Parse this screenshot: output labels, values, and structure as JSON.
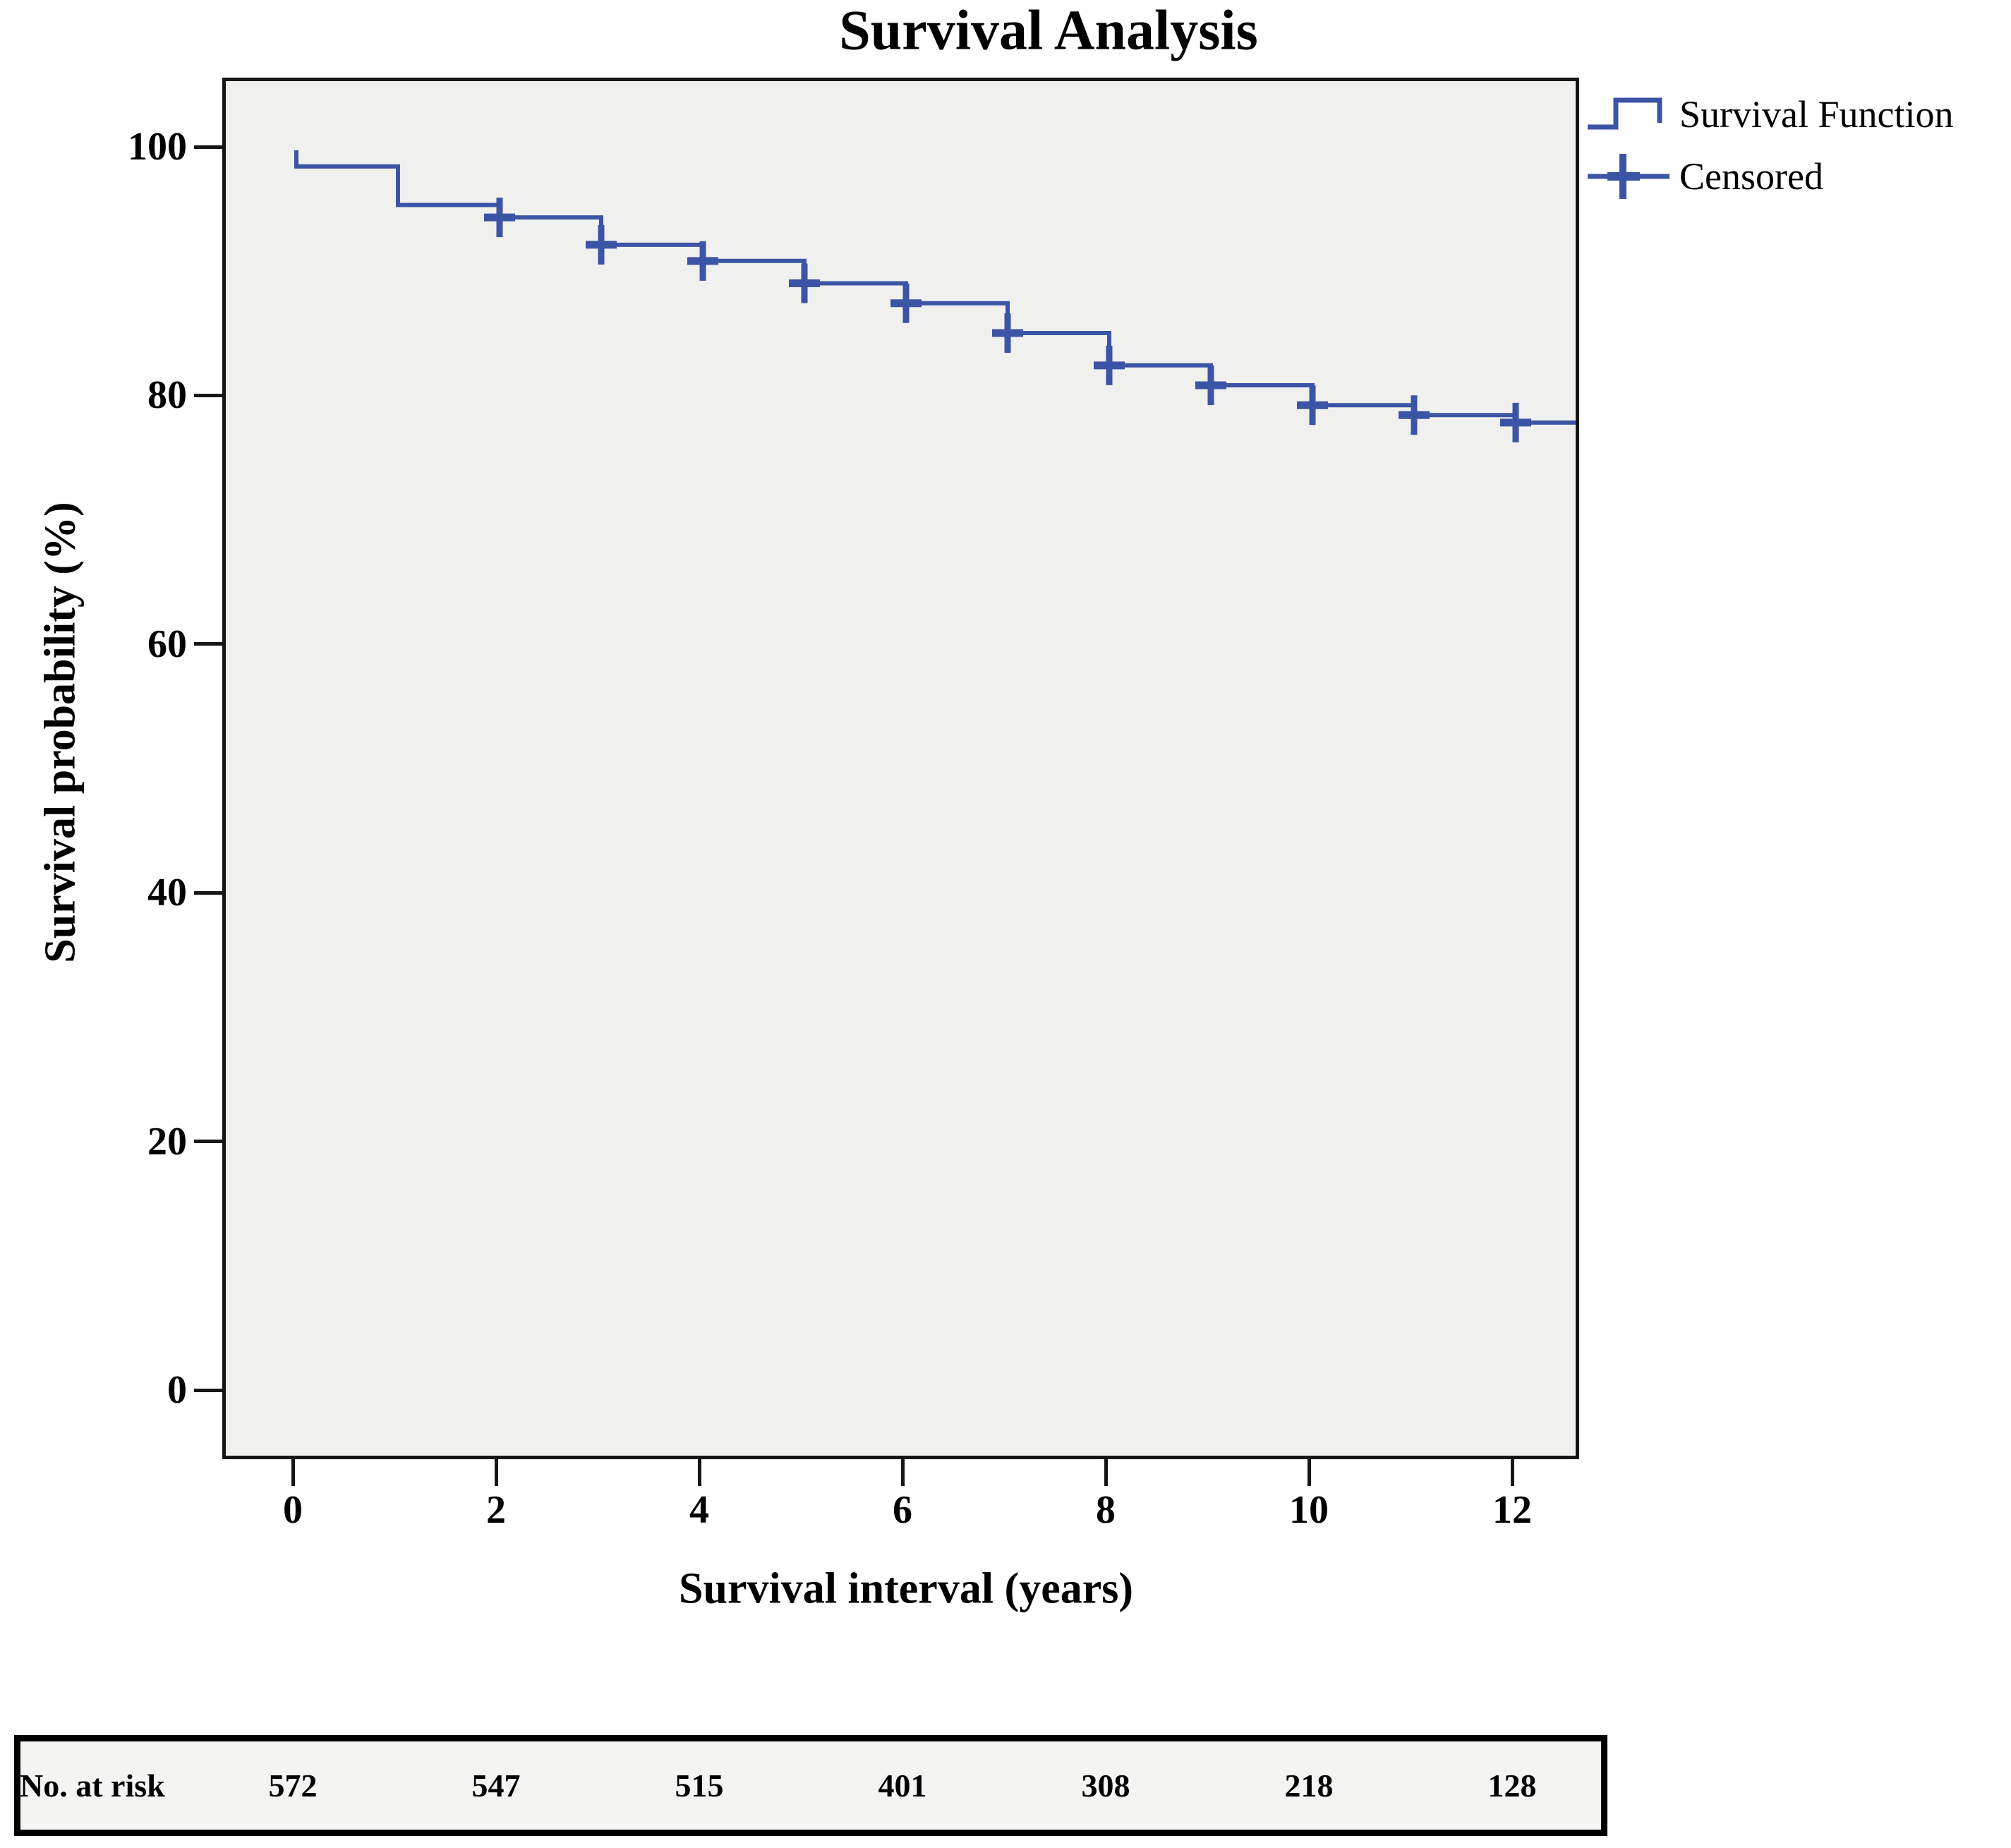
{
  "title": "Survival Analysis",
  "legend": {
    "items": [
      {
        "label": "Survival Function",
        "symbol": "step-line-icon"
      },
      {
        "label": "Censored",
        "symbol": "plus-marker-icon"
      }
    ]
  },
  "risk_table": {
    "label": "No. at risk",
    "times": [
      0,
      2,
      4,
      6,
      8,
      10,
      12
    ],
    "values": [
      572,
      547,
      515,
      401,
      308,
      218,
      128
    ]
  },
  "chart_data": {
    "type": "line",
    "subtype": "kaplan-meier-step",
    "title": "Survival Analysis",
    "xlabel": "Survival interval (years)",
    "ylabel": "Survival probability (%)",
    "x_ticks": [
      0,
      2,
      4,
      6,
      8,
      10,
      12
    ],
    "y_ticks": [
      100,
      80,
      60,
      40,
      20,
      0
    ],
    "xlim": [
      -0.69,
      12.66
    ],
    "ylim": [
      -5.6,
      105.6
    ],
    "grid": false,
    "legend_position": "top-right-outside",
    "plot_bg": "#f0f0ef",
    "line_color": "#3c54a6",
    "frame_color": "#161616",
    "series": [
      {
        "name": "Survival Function",
        "points": [
          [
            0,
            100
          ],
          [
            0,
            98.7
          ],
          [
            1,
            98.7
          ],
          [
            1,
            95.6
          ],
          [
            2,
            95.6
          ],
          [
            2,
            94.6
          ],
          [
            3,
            94.6
          ],
          [
            3,
            92.4
          ],
          [
            4,
            92.4
          ],
          [
            4,
            91.1
          ],
          [
            5,
            91.1
          ],
          [
            5,
            89.3
          ],
          [
            6,
            89.3
          ],
          [
            6,
            87.7
          ],
          [
            7,
            87.7
          ],
          [
            7,
            85.3
          ],
          [
            8,
            85.3
          ],
          [
            8,
            82.7
          ],
          [
            9,
            82.7
          ],
          [
            9,
            81.1
          ],
          [
            10,
            81.1
          ],
          [
            10,
            79.5
          ],
          [
            11,
            79.5
          ],
          [
            11,
            78.7
          ],
          [
            12,
            78.7
          ],
          [
            12,
            78.1
          ],
          [
            12.66,
            78.1
          ]
        ]
      }
    ],
    "censored_points": [
      [
        2,
        94.6
      ],
      [
        3,
        92.4
      ],
      [
        4,
        91.1
      ],
      [
        5,
        89.3
      ],
      [
        6,
        87.7
      ],
      [
        7,
        85.3
      ],
      [
        8,
        82.7
      ],
      [
        9,
        81.1
      ],
      [
        10,
        79.5
      ],
      [
        11,
        78.7
      ],
      [
        12,
        78.1
      ]
    ]
  }
}
